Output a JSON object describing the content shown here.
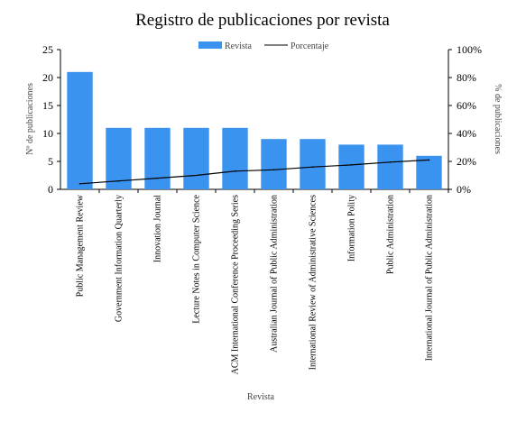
{
  "chart_data": {
    "type": "bar",
    "title": "Registro de publicaciones por revista",
    "xlabel": "Revista",
    "ylabel": "Nº de publicaciones",
    "y2label": "% de publicaciones",
    "ylim": [
      0,
      25
    ],
    "y2lim": [
      0,
      100
    ],
    "yticks": [
      "0",
      "5",
      "10",
      "15",
      "20",
      "25"
    ],
    "y2ticks": [
      "0%",
      "20%",
      "40%",
      "60%",
      "80%",
      "100%"
    ],
    "legend_position": "top-center",
    "grid": false,
    "categories": [
      "Public Management Review",
      "Government Information Quarterly",
      "Innovation Journal",
      "Lecture Notes in Computer Science",
      "ACM International Conference Proceeding Series",
      "Australian Journal of Public Administration",
      "International Review of Administrative Sciences",
      "Information Polity",
      "Public Administration",
      "International Journal of Public Administration"
    ],
    "series": [
      {
        "name": "Revista",
        "type": "bar",
        "axis": "left",
        "color": "#3b93f0",
        "values": [
          21,
          11,
          11,
          11,
          11,
          9,
          9,
          8,
          8,
          6
        ]
      },
      {
        "name": "Porcentaje",
        "type": "line",
        "axis": "right",
        "color": "#000000",
        "values": [
          4,
          6,
          8,
          10,
          13,
          14,
          16,
          17.5,
          19.5,
          21
        ]
      }
    ]
  }
}
